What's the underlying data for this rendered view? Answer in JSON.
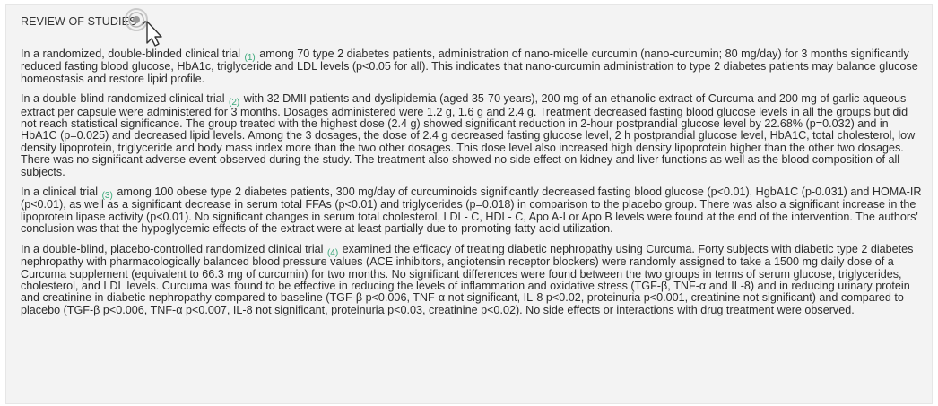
{
  "section": {
    "title": "REVIEW OF STUDIES",
    "toggle_icon": "chevron-up-icon",
    "cursor_icon": "pointer-cursor-icon"
  },
  "colors": {
    "panel_bg": "#f3f3f3",
    "ref_link": "#3aa87a",
    "text": "#2b2b2b"
  },
  "paragraphs": [
    {
      "before": "In a randomized, double-blinded clinical trial",
      "ref": "(1)",
      "after": "among 70 type 2 diabetes patients, administration of nano-micelle curcumin (nano-curcumin; 80 mg/day) for 3 months significantly reduced fasting blood glucose, HbA1c, triglyceride and LDL levels (p<0.05 for all). This indicates that nano-curcumin administration to type 2 diabetes patients may balance glucose homeostasis and restore lipid profile."
    },
    {
      "before": "In a double-blind randomized clinical trial",
      "ref": "(2)",
      "after": "with 32 DMII patients and dyslipidemia (aged 35-70 years), 200 mg of an ethanolic extract of Curcuma and 200 mg of garlic aqueous extract per capsule were administered for 3 months. Dosages administered were 1.2 g, 1.6 g and 2.4 g. Treatment decreased fasting blood glucose levels in all the groups but did not reach statistical significance. The group treated with the highest dose (2.4 g) showed significant reduction in 2-hour postprandial glucose level by 22.68% (p=0.032) and in HbA1C (p=0.025) and decreased lipid levels. Among the 3 dosages, the dose of 2.4 g decreased fasting glucose level, 2 h postprandial glucose level, HbA1C, total cholesterol, low density lipoprotein, triglyceride and body mass index more than the two other dosages. This dose level also increased high density lipoprotein higher than the other two dosages. There was no significant adverse event observed during the study. The treatment also showed no side effect on kidney and liver functions as well as the blood composition of all subjects."
    },
    {
      "before": "In a clinical trial",
      "ref": "(3)",
      "after": "among 100 obese type 2 diabetes patients, 300 mg/day of curcuminoids significantly decreased fasting blood glucose (p<0.01), HgbA1C (p-0.031) and HOMA-IR (p<0.01), as well as a significant decrease in serum total FFAs (p<0.01) and triglycerides (p=0.018) in comparison to the placebo group. There was also a significant increase in the lipoprotein lipase activity (p<0.01). No significant changes in serum total cholesterol, LDL- C, HDL- C, Apo A-I or Apo B levels were found at the end of the intervention. The authors' conclusion was that the hypoglycemic effects of the extract were at least partially due to promoting fatty acid utilization."
    },
    {
      "before": "In a double-blind, placebo-controlled randomized clinical trial",
      "ref": "(4)",
      "after": "examined the efficacy of treating diabetic nephropathy using Curcuma. Forty subjects with diabetic type 2 diabetes nephropathy with pharmacologically balanced blood pressure values (ACE inhibitors, angiotensin receptor blockers) were randomly assigned to take a 1500 mg daily dose of a Curcuma supplement (equivalent to 66.3 mg of curcumin) for two months. No significant differences were found between the two groups in terms of serum glucose, triglycerides, cholesterol, and LDL levels. Curcuma was found to be effective in reducing the levels of inflammation and oxidative stress (TGF-β, TNF-α and IL-8) and in reducing urinary protein and creatinine in diabetic nephropathy compared to baseline (TGF-β p<0.006, TNF-α not significant, IL-8 p<0.02, proteinuria p<0.001, creatinine not significant) and compared to placebo (TGF-β p<0.006, TNF-α p<0.007, IL-8 not significant, proteinuria p<0.03, creatinine p<0.02). No side effects or interactions with drug treatment were observed."
    }
  ]
}
